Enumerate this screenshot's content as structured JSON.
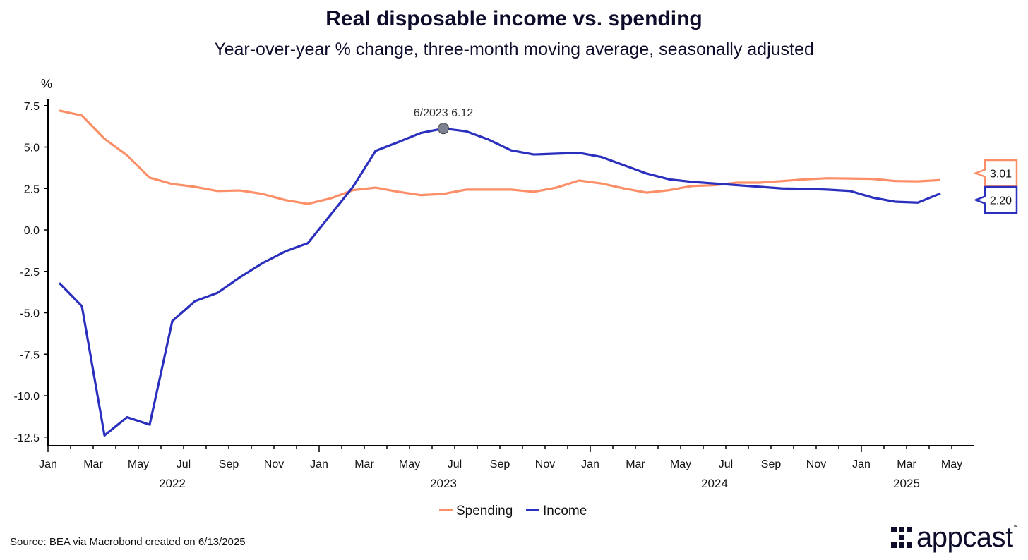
{
  "chart_data": {
    "type": "line",
    "title": "Real disposable income vs. spending",
    "subtitle": "Year-over-year % change, three-month moving average, seasonally adjusted",
    "ylabel": "%",
    "ylim": [
      -12.5,
      7.5
    ],
    "yticks": [
      "7.5",
      "5.0",
      "2.5",
      "0.0",
      "-2.5",
      "-5.0",
      "-7.5",
      "-10.0",
      "-12.5"
    ],
    "ytick_values": [
      7.5,
      5,
      2.5,
      0,
      -2.5,
      -5,
      -7.5,
      -10,
      -12.5
    ],
    "x_start": "2022-01",
    "x_months_count": 41,
    "xtick_labels": [
      "Jan",
      "Mar",
      "May",
      "Jul",
      "Sep",
      "Nov",
      "Jan",
      "Mar",
      "May",
      "Jul",
      "Sep",
      "Nov",
      "Jan",
      "Mar",
      "May",
      "Jul",
      "Sep",
      "Nov",
      "Jan",
      "Mar",
      "May"
    ],
    "year_labels": [
      {
        "label": "2022",
        "month_index": 5.5
      },
      {
        "label": "2023",
        "month_index": 17.5
      },
      {
        "label": "2024",
        "month_index": 29.5
      },
      {
        "label": "2025",
        "month_index": 38
      }
    ],
    "series": [
      {
        "name": "Spending",
        "color": "#fc8f68",
        "values": [
          7.2,
          6.9,
          5.5,
          4.5,
          3.15,
          2.77,
          2.6,
          2.35,
          2.38,
          2.17,
          1.8,
          1.57,
          1.9,
          2.4,
          2.55,
          2.3,
          2.1,
          2.17,
          2.43,
          2.43,
          2.43,
          2.3,
          2.55,
          2.98,
          2.8,
          2.5,
          2.25,
          2.4,
          2.65,
          2.7,
          2.85,
          2.85,
          2.95,
          3.05,
          3.12,
          3.1,
          3.08,
          2.95,
          2.93,
          3.01
        ],
        "end_label": "3.01"
      },
      {
        "name": "Income",
        "color": "#2a2fbd",
        "values": [
          -3.2,
          -4.6,
          -12.4,
          -11.3,
          -11.75,
          -5.5,
          -4.3,
          -3.8,
          -2.85,
          -2.0,
          -1.3,
          -0.8,
          0.9,
          2.6,
          4.77,
          5.3,
          5.85,
          6.12,
          5.95,
          5.45,
          4.8,
          4.55,
          4.6,
          4.65,
          4.4,
          3.9,
          3.4,
          3.05,
          2.9,
          2.8,
          2.7,
          2.6,
          2.5,
          2.48,
          2.43,
          2.35,
          1.95,
          1.7,
          1.65,
          2.2
        ],
        "end_label": "2.20"
      }
    ],
    "annotation": {
      "label": "6/2023 6.12",
      "series": "Income",
      "month_index": 17,
      "value": 6.12
    },
    "legend": "bottom-center",
    "grid": false
  },
  "source": "Source: BEA via Macrobond created on 6/13/2025",
  "logo": "appcast"
}
